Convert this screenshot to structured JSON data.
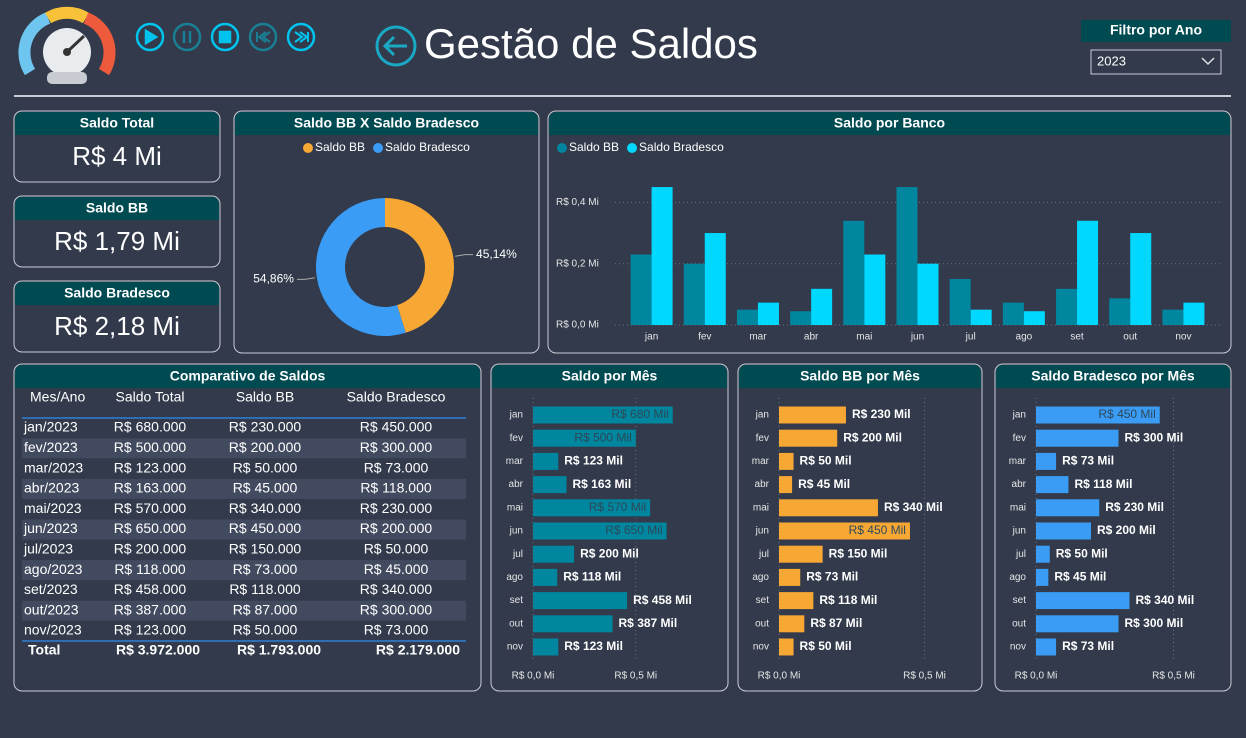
{
  "header": {
    "title": "Gestão de Saldos",
    "filter_label": "Filtro por Ano",
    "filter_value": "2023"
  },
  "cards": [
    {
      "title": "Saldo Total",
      "value": "R$ 4 Mi"
    },
    {
      "title": "Saldo BB",
      "value": "R$ 1,79 Mi"
    },
    {
      "title": "Saldo Bradesco",
      "value": "R$ 2,18 Mi"
    }
  ],
  "table": {
    "title": "Comparativo de Saldos",
    "columns": [
      "Mes/Ano",
      "Saldo Total",
      "Saldo BB",
      "Saldo Bradesco"
    ],
    "rows": [
      [
        "jan/2023",
        "R$ 680.000",
        "R$ 230.000",
        "R$ 450.000"
      ],
      [
        "fev/2023",
        "R$ 500.000",
        "R$ 200.000",
        "R$ 300.000"
      ],
      [
        "mar/2023",
        "R$ 123.000",
        "R$ 50.000",
        "R$ 73.000"
      ],
      [
        "abr/2023",
        "R$ 163.000",
        "R$ 45.000",
        "R$ 118.000"
      ],
      [
        "mai/2023",
        "R$ 570.000",
        "R$ 340.000",
        "R$ 230.000"
      ],
      [
        "jun/2023",
        "R$ 650.000",
        "R$ 450.000",
        "R$ 200.000"
      ],
      [
        "jul/2023",
        "R$ 200.000",
        "R$ 150.000",
        "R$ 50.000"
      ],
      [
        "ago/2023",
        "R$ 118.000",
        "R$ 73.000",
        "R$ 45.000"
      ],
      [
        "set/2023",
        "R$ 458.000",
        "R$ 118.000",
        "R$ 340.000"
      ],
      [
        "out/2023",
        "R$ 387.000",
        "R$ 87.000",
        "R$ 300.000"
      ],
      [
        "nov/2023",
        "R$ 123.000",
        "R$ 50.000",
        "R$ 73.000"
      ]
    ],
    "total": [
      "Total",
      "R$ 3.972.000",
      "R$ 1.793.000",
      "R$ 2.179.000"
    ]
  },
  "chart_data": [
    {
      "type": "pie",
      "title": "Saldo BB X Saldo Bradesco",
      "categories": [
        "Saldo BB",
        "Saldo Bradesco"
      ],
      "values": [
        45.14,
        54.86
      ],
      "value_labels": [
        "45,14%",
        "54,86%"
      ],
      "colors": [
        "#f7a734",
        "#3a9cf5"
      ],
      "donut": true
    },
    {
      "type": "bar",
      "title": "Saldo por Banco",
      "categories": [
        "jan",
        "fev",
        "mar",
        "abr",
        "mai",
        "jun",
        "jul",
        "ago",
        "set",
        "out",
        "nov"
      ],
      "series": [
        {
          "name": "Saldo BB",
          "color": "#00869e",
          "values": [
            0.23,
            0.2,
            0.05,
            0.045,
            0.34,
            0.45,
            0.15,
            0.073,
            0.118,
            0.087,
            0.05
          ]
        },
        {
          "name": "Saldo Bradesco",
          "color": "#00d8ff",
          "values": [
            0.45,
            0.3,
            0.073,
            0.118,
            0.23,
            0.2,
            0.05,
            0.045,
            0.34,
            0.3,
            0.073
          ]
        }
      ],
      "ylim": [
        0,
        0.46
      ],
      "yticks": [
        {
          "value": 0,
          "label": "R$ 0,0 Mi"
        },
        {
          "value": 0.2,
          "label": "R$ 0,2 Mi"
        },
        {
          "value": 0.4,
          "label": "R$ 0,4 Mi"
        }
      ],
      "grid": true,
      "legend": "top-left"
    },
    {
      "type": "bar",
      "orientation": "horizontal",
      "title": "Saldo por Mês",
      "categories": [
        "jan",
        "fev",
        "mar",
        "abr",
        "mai",
        "jun",
        "jul",
        "ago",
        "set",
        "out",
        "nov"
      ],
      "color": "#00869e",
      "values": [
        0.68,
        0.5,
        0.123,
        0.163,
        0.57,
        0.65,
        0.2,
        0.118,
        0.458,
        0.387,
        0.123
      ],
      "value_labels": [
        "R$ 680 Mil",
        "R$ 500 Mil",
        "R$ 123 Mil",
        "R$ 163 Mil",
        "R$ 570 Mil",
        "R$ 650 Mil",
        "R$ 200 Mil",
        "R$ 118 Mil",
        "R$ 458 Mil",
        "R$ 387 Mil",
        "R$ 123 Mil"
      ],
      "xlim": [
        0,
        0.91
      ],
      "xticks": [
        {
          "value": 0,
          "label": "R$ 0,0 Mi"
        },
        {
          "value": 0.5,
          "label": "R$ 0,5 Mi"
        }
      ]
    },
    {
      "type": "bar",
      "orientation": "horizontal",
      "title": "Saldo BB por Mês",
      "categories": [
        "jan",
        "fev",
        "mar",
        "abr",
        "mai",
        "jun",
        "jul",
        "ago",
        "set",
        "out",
        "nov"
      ],
      "color": "#f7a734",
      "values": [
        0.23,
        0.2,
        0.05,
        0.045,
        0.34,
        0.45,
        0.15,
        0.073,
        0.118,
        0.087,
        0.05
      ],
      "value_labels": [
        "R$ 230 Mil",
        "R$ 200 Mil",
        "R$ 50 Mil",
        "R$ 45 Mil",
        "R$ 340 Mil",
        "R$ 450 Mil",
        "R$ 150 Mil",
        "R$ 73 Mil",
        "R$ 118 Mil",
        "R$ 87 Mil",
        "R$ 50 Mil"
      ],
      "xlim": [
        0,
        0.67
      ],
      "xticks": [
        {
          "value": 0,
          "label": "R$ 0,0 Mi"
        },
        {
          "value": 0.5,
          "label": "R$ 0,5 Mi"
        }
      ]
    },
    {
      "type": "bar",
      "orientation": "horizontal",
      "title": "Saldo Bradesco por Mês",
      "categories": [
        "jan",
        "fev",
        "mar",
        "abr",
        "mai",
        "jun",
        "jul",
        "ago",
        "set",
        "out",
        "nov"
      ],
      "color": "#3a9cf5",
      "values": [
        0.45,
        0.3,
        0.073,
        0.118,
        0.23,
        0.2,
        0.05,
        0.045,
        0.34,
        0.3,
        0.073
      ],
      "value_labels": [
        "R$ 450 Mil",
        "R$ 300 Mil",
        "R$ 73 Mil",
        "R$ 118 Mil",
        "R$ 230 Mil",
        "R$ 200 Mil",
        "R$ 50 Mil",
        "R$ 45 Mil",
        "R$ 340 Mil",
        "R$ 300 Mil",
        "R$ 73 Mil"
      ],
      "xlim": [
        0,
        0.68
      ],
      "xticks": [
        {
          "value": 0,
          "label": "R$ 0,0 Mi"
        },
        {
          "value": 0.5,
          "label": "R$ 0,5 Mi"
        }
      ]
    }
  ]
}
